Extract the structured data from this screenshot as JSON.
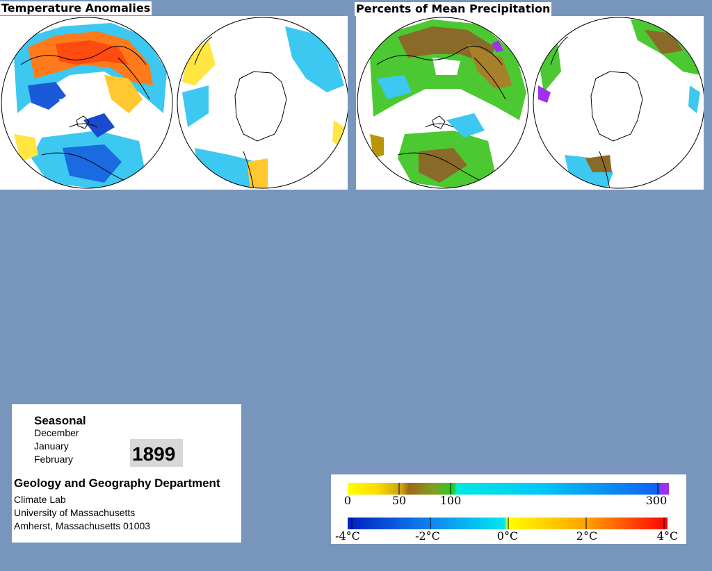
{
  "panels": {
    "temperature": {
      "title": "Temperature Anomalies"
    },
    "precipitation": {
      "title": "Percents of Mean Precipitation"
    }
  },
  "info": {
    "period_type": "Seasonal",
    "months": [
      "December",
      "January",
      "February"
    ],
    "year": "1899",
    "department": "Geology and Geography Department",
    "lab": "Climate Lab",
    "university": "University of Massachusetts",
    "address": "Amherst, Massachusetts 01003"
  },
  "legend": {
    "precipitation": {
      "labels": [
        "0",
        "50",
        "100",
        "300"
      ],
      "stops": [
        0,
        50,
        100,
        300
      ],
      "colors": [
        "#ffff00",
        "#b8960a",
        "#a8601a",
        "#20d020",
        "#00e0e0",
        "#00c8f8",
        "#1068f0",
        "#a030f0"
      ]
    },
    "temperature": {
      "labels": [
        "-4°C",
        "-2°C",
        "0°C",
        "2°C",
        "4°C"
      ],
      "stops": [
        -4,
        -2,
        0,
        2,
        4
      ],
      "colors": [
        "#0020c0",
        "#1070f0",
        "#00b8f0",
        "#00f0f0",
        "#ffff00",
        "#ffb000",
        "#ff6000",
        "#ff0000"
      ]
    }
  },
  "colors": {
    "background": "#7896bc",
    "map_warm": "#ff7a1a",
    "map_cool": "#36c8f0",
    "map_cold": "#1a5ad8",
    "precip_green": "#4cc832",
    "precip_brown": "#8a6a28"
  }
}
